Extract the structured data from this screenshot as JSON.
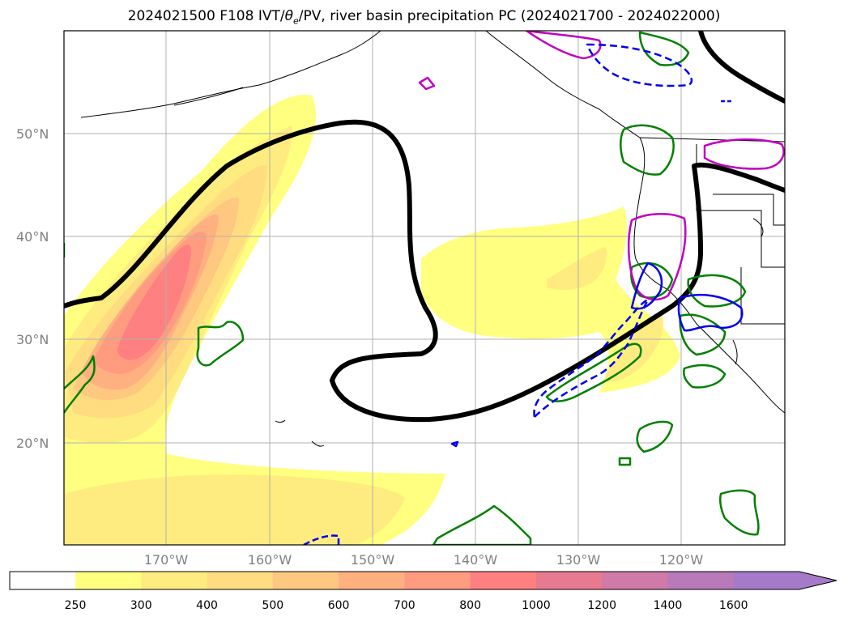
{
  "title": {
    "prefix": "2024021500 F108 IVT/",
    "theta": "θ",
    "theta_sub": "e",
    "suffix": "/PV, river basin precipitation PC (2024021700 - 2024022000)"
  },
  "map": {
    "lat_labels": [
      "50°N",
      "40°N",
      "30°N",
      "20°N"
    ],
    "lon_labels": [
      "170°W",
      "160°W",
      "150°W",
      "140°W",
      "130°W",
      "120°W"
    ],
    "grid": true
  },
  "colorbar": {
    "ticks": [
      "250",
      "300",
      "400",
      "500",
      "600",
      "700",
      "800",
      "1000",
      "1200",
      "1400",
      "1600"
    ],
    "colors": [
      "#ffff80",
      "#ffec80",
      "#ffdc80",
      "#ffc880",
      "#ffb080",
      "#ff9c80",
      "#ff8080",
      "#e87a90",
      "#d07aa8",
      "#b87ab8",
      "#a57ac8"
    ],
    "extend": "max"
  },
  "colors": {
    "ivt_low": "#fff680",
    "ivt_mid": "#ffd678",
    "ivt_high": "#ff8a78",
    "pv_contour": "#000000",
    "green_contour": "#008000",
    "magenta_contour": "#c000c0",
    "blue_contour": "#0000ee"
  }
}
